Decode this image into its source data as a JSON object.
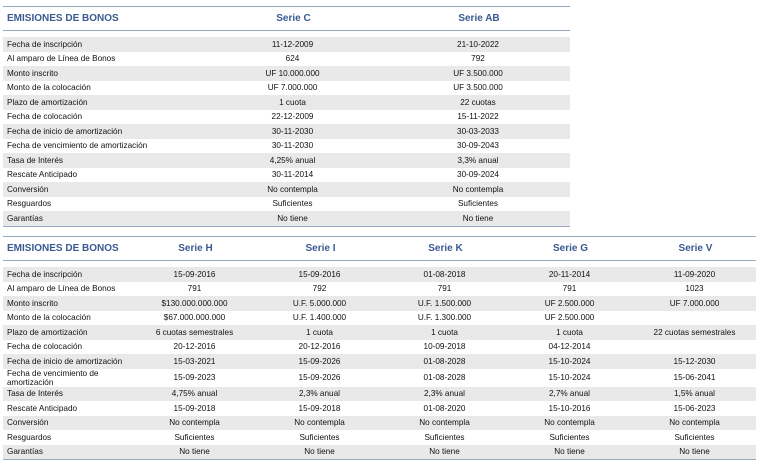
{
  "table1": {
    "headers": [
      "EMISIONES DE BONOS",
      "Serie C",
      "Serie AB"
    ],
    "rows": [
      [
        "Fecha de inscripción",
        "11-12-2009",
        "21-10-2022"
      ],
      [
        "Al amparo de Línea de Bonos",
        "624",
        "792"
      ],
      [
        "Monto inscrito",
        "UF 10.000.000",
        "UF 3.500.000"
      ],
      [
        "Monto de la colocación",
        "UF 7.000.000",
        "UF 3.500.000"
      ],
      [
        "Plazo de amortización",
        "1 cuota",
        "22 cuotas"
      ],
      [
        "Fecha de colocación",
        "22-12-2009",
        "15-11-2022"
      ],
      [
        "Fecha de inicio de amortización",
        "30-11-2030",
        "30-03-2033"
      ],
      [
        "Fecha de vencimiento de amortización",
        "30-11-2030",
        "30-09-2043"
      ],
      [
        "Tasa de Interés",
        "4,25% anual",
        "3,3% anual"
      ],
      [
        "Rescate Anticipado",
        "30-11-2014",
        "30-09-2024"
      ],
      [
        "Conversión",
        "No contempla",
        "No contempla"
      ],
      [
        "Resguardos",
        "Suficientes",
        "Suficientes"
      ],
      [
        "Garantías",
        "No tiene",
        "No tiene"
      ]
    ]
  },
  "table2": {
    "headers": [
      "EMISIONES DE BONOS",
      "Serie H",
      "Serie I",
      "Serie K",
      "Serie G",
      "Serie V"
    ],
    "rows": [
      [
        "Fecha de inscripción",
        "15-09-2016",
        "15-09-2016",
        "01-08-2018",
        "20-11-2014",
        "11-09-2020"
      ],
      [
        "Al amparo de Línea de Bonos",
        "791",
        "792",
        "791",
        "791",
        "1023"
      ],
      [
        "Monto inscrito",
        "$130.000.000.000",
        "U.F. 5.000.000",
        "U.F. 1.500.000",
        "UF 2.500.000",
        "UF 7.000.000"
      ],
      [
        "Monto de la colocación",
        "$67.000.000.000",
        "U.F. 1.400.000",
        "U.F. 1.300.000",
        "UF 2.500.000",
        ""
      ],
      [
        "Plazo de amortización",
        "6 cuotas semestrales",
        "1 cuota",
        "1 cuota",
        "1 cuota",
        "22 cuotas semestrales"
      ],
      [
        "Fecha de colocación",
        "20-12-2016",
        "20-12-2016",
        "10-09-2018",
        "04-12-2014",
        ""
      ],
      [
        "Fecha de inicio de amortización",
        "15-03-2021",
        "15-09-2026",
        "01-08-2028",
        "15-10-2024",
        "15-12-2030"
      ],
      [
        "Fecha de vencimiento de amortización",
        "15-09-2023",
        "15-09-2026",
        "01-08-2028",
        "15-10-2024",
        "15-06-2041"
      ],
      [
        "Tasa de Interés",
        "4,75% anual",
        "2,3% anual",
        "2,3% anual",
        "2,7% anual",
        "1,5% anual"
      ],
      [
        "Rescate Anticipado",
        "15-09-2018",
        "15-09-2018",
        "01-08-2020",
        "15-10-2016",
        "15-06-2023"
      ],
      [
        "Conversión",
        "No contempla",
        "No contempla",
        "No contempla",
        "No contempla",
        "No contempla"
      ],
      [
        "Resguardos",
        "Suficientes",
        "Suficientes",
        "Suficientes",
        "Suficientes",
        "Suficientes"
      ],
      [
        "Garantías",
        "No tiene",
        "No tiene",
        "No tiene",
        "No tiene",
        "No tiene"
      ]
    ]
  }
}
